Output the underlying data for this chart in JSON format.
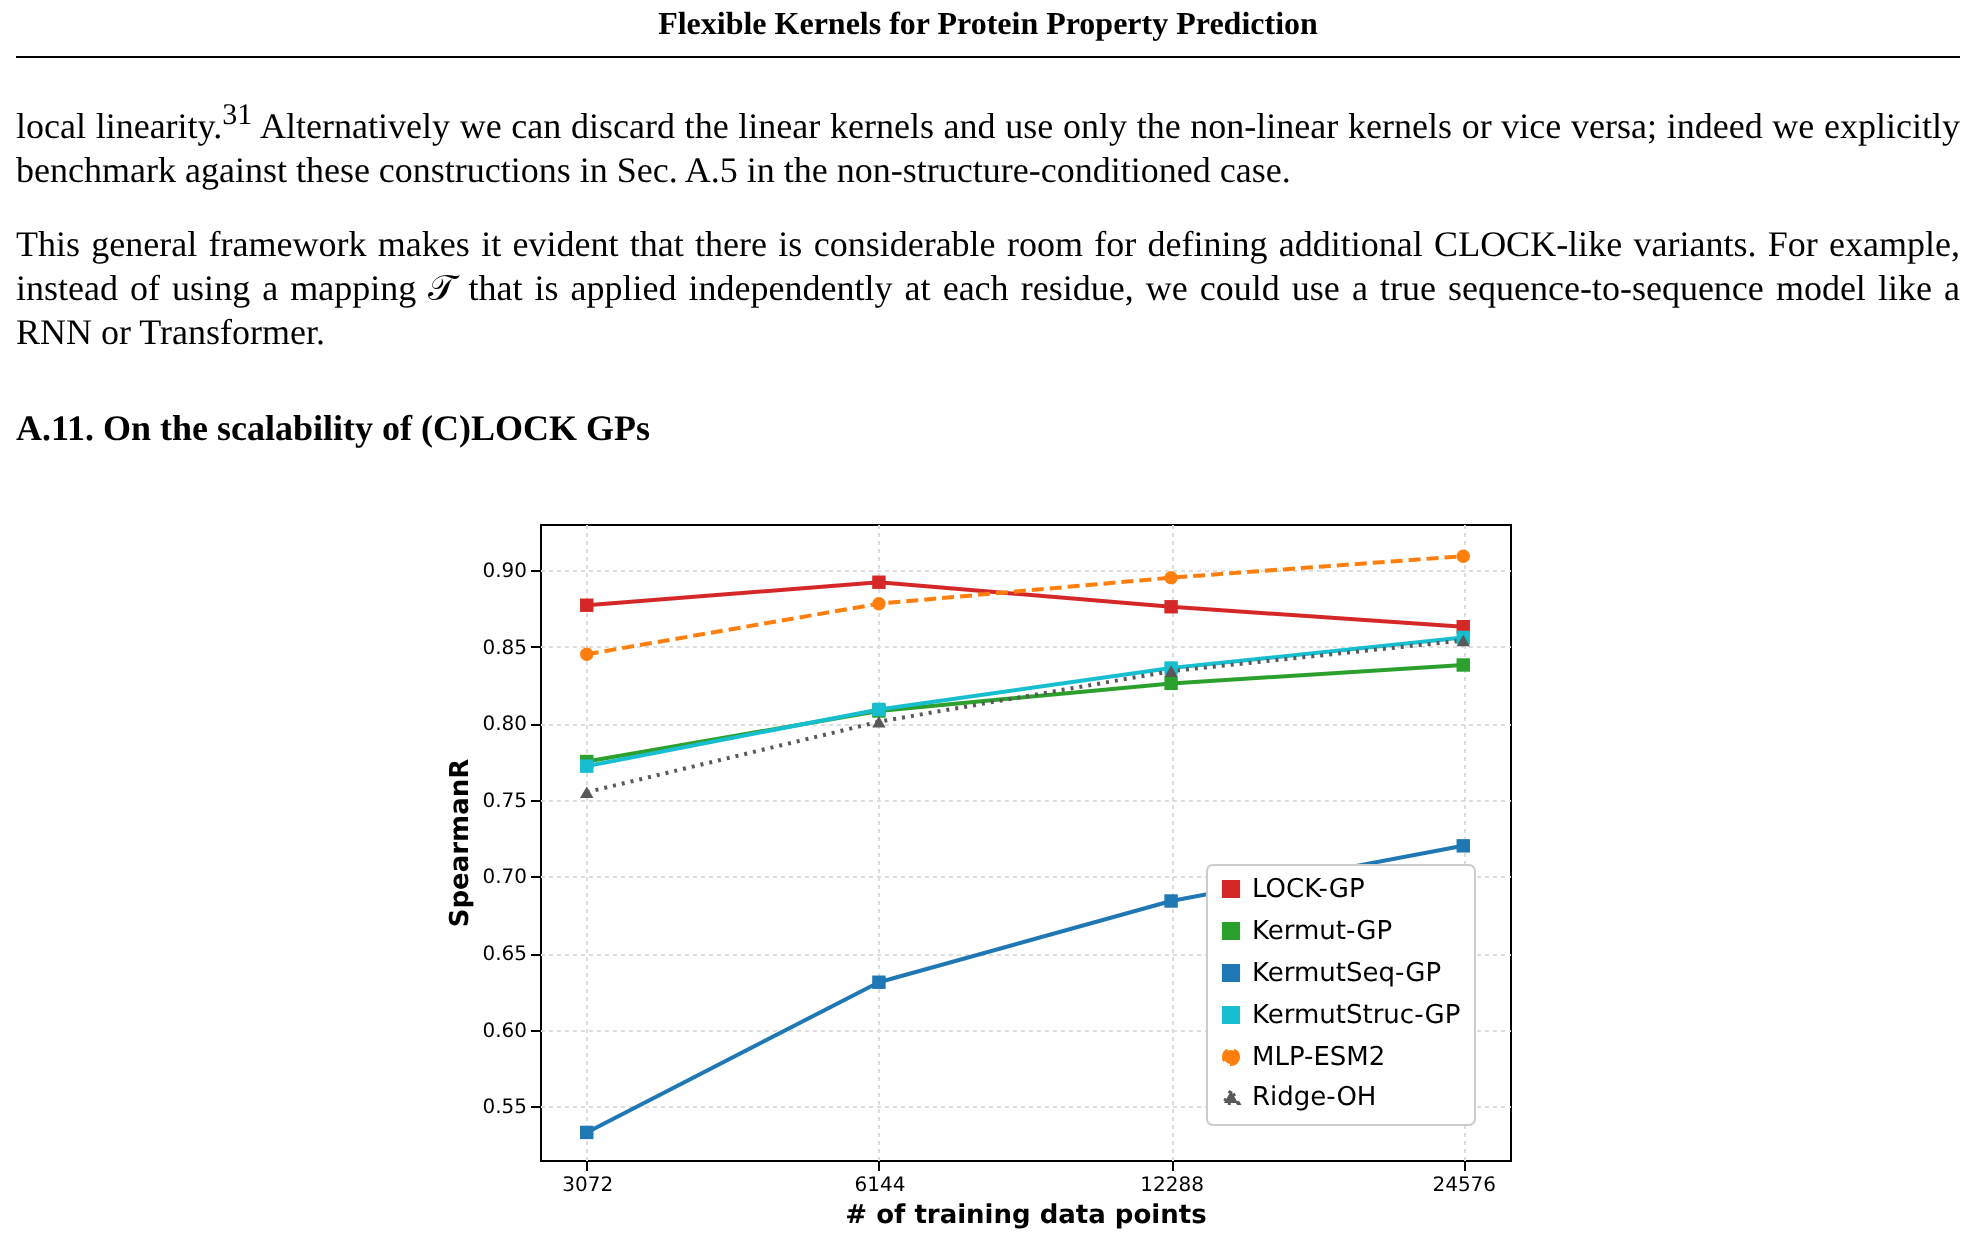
{
  "chart_data": {
    "type": "line",
    "xlabel": "# of training data points",
    "ylabel": "SpearmanR",
    "categories": [
      "3072",
      "6144",
      "12288",
      "24576"
    ],
    "ylim": [
      0.515,
      0.93
    ],
    "yticks": [
      0.55,
      {
        "value": 0.6,
        "label": "0.60"
      },
      0.65,
      {
        "value": 0.7,
        "label": "0.70"
      },
      0.75,
      {
        "value": 0.8,
        "label": "0.80"
      },
      0.85,
      {
        "value": 0.9,
        "label": "0.90"
      }
    ],
    "grid": true,
    "legend": "bottom right",
    "series": [
      {
        "name": "LOCK-GP",
        "color": "#d62728",
        "marker": "square",
        "line_style": "solid",
        "values": [
          0.877,
          0.892,
          0.876,
          0.863
        ]
      },
      {
        "name": "Kermut-GP",
        "color": "#2ca02c",
        "marker": "square",
        "line_style": "solid",
        "values": [
          0.775,
          0.808,
          0.826,
          0.838
        ]
      },
      {
        "name": "KermutSeq-GP",
        "color": "#1f77b4",
        "marker": "square",
        "line_style": "solid",
        "values": [
          0.533,
          0.631,
          0.684,
          0.72
        ]
      },
      {
        "name": "KermutStruc-GP",
        "color": "#17becf",
        "marker": "square",
        "line_style": "solid",
        "values": [
          0.772,
          0.809,
          0.836,
          0.856
        ]
      },
      {
        "name": "MLP-ESM2",
        "color": "#ff7f0e",
        "marker": "circle",
        "line_style": "dashed",
        "values": [
          0.845,
          0.878,
          0.895,
          0.909
        ]
      },
      {
        "name": "Ridge-OH",
        "color": "#595959",
        "marker": "triangle",
        "line_style": "dotted",
        "values": [
          0.755,
          0.801,
          0.834,
          0.854
        ]
      }
    ],
    "annotations": [
      "Flexible Kernels for Protein Property Prediction",
      "local linearity.$^{31}$ Alternatively we can discard the linear kernels and use only the non-linear kernels or vice versa; indeed we explicitly benchmark against these constructions in Sec. A.5 in the non-structure-conditioned case.",
      "This general framework makes it evident that there is considerable room for defining additional CLOCK-like variants. For example, instead of using a mapping 𝒯 that is applied independently at each residue, we could use a true sequence-to-sequence model like a RNN or Transformer.",
      "A.11. On the scalability of (C)LOCK GPs"
    ]
  }
}
